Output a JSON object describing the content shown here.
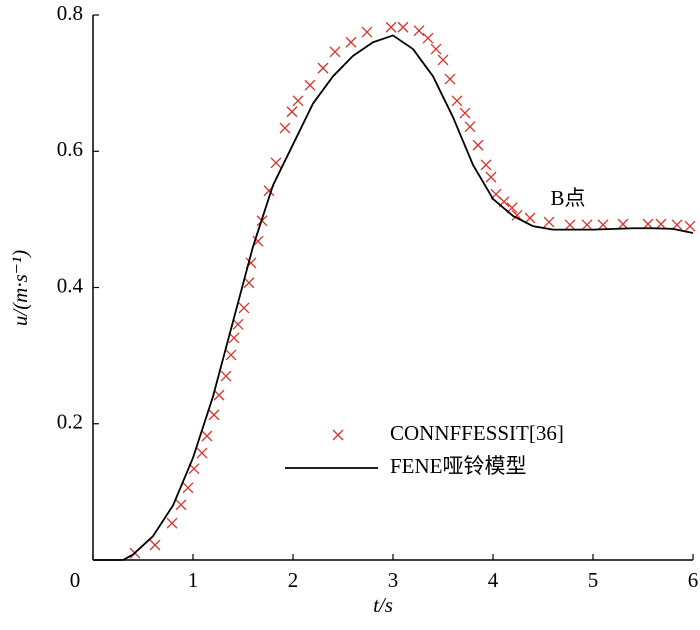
{
  "chart_data": {
    "type": "line",
    "x_label": "t/s",
    "y_label": "u/(m·s⁻¹)",
    "annotation": "B点",
    "xlim": [
      0,
      6
    ],
    "ylim": [
      0,
      0.8
    ],
    "xticks": [
      0,
      1,
      2,
      3,
      4,
      5,
      6
    ],
    "yticks": [
      0.2,
      0.4,
      0.6,
      0.8
    ],
    "series": [
      {
        "name": "CONNFFESSIT[36]",
        "type": "scatter",
        "color": "#d8322a",
        "x": [
          0.42,
          0.62,
          0.79,
          0.88,
          0.95,
          1.01,
          1.09,
          1.14,
          1.21,
          1.26,
          1.33,
          1.38,
          1.41,
          1.45,
          1.51,
          1.56,
          1.58,
          1.65,
          1.69,
          1.76,
          1.83,
          1.92,
          1.99,
          2.05,
          2.17,
          2.3,
          2.42,
          2.58,
          2.74,
          2.98,
          3.1,
          3.26,
          3.35,
          3.43,
          3.5,
          3.57,
          3.64,
          3.72,
          3.77,
          3.85,
          3.93,
          3.98,
          4.03,
          4.11,
          4.19,
          4.24,
          4.37,
          4.56,
          4.77,
          4.94,
          5.1,
          5.3,
          5.55,
          5.68,
          5.84,
          5.97
        ],
        "values": [
          0.01,
          0.022,
          0.054,
          0.081,
          0.106,
          0.134,
          0.157,
          0.182,
          0.213,
          0.242,
          0.27,
          0.301,
          0.326,
          0.346,
          0.37,
          0.407,
          0.436,
          0.468,
          0.498,
          0.542,
          0.583,
          0.634,
          0.658,
          0.674,
          0.697,
          0.722,
          0.746,
          0.76,
          0.775,
          0.782,
          0.782,
          0.777,
          0.766,
          0.75,
          0.734,
          0.706,
          0.674,
          0.656,
          0.636,
          0.609,
          0.58,
          0.562,
          0.537,
          0.526,
          0.517,
          0.506,
          0.502,
          0.496,
          0.492,
          0.492,
          0.492,
          0.493,
          0.493,
          0.493,
          0.492,
          0.49
        ]
      },
      {
        "name": "FENE哑铃模型",
        "type": "line",
        "color": "#000000",
        "x": [
          0,
          0.3,
          0.4,
          0.6,
          0.8,
          1.0,
          1.2,
          1.4,
          1.6,
          1.8,
          2.0,
          2.2,
          2.4,
          2.6,
          2.8,
          3.0,
          3.2,
          3.4,
          3.6,
          3.8,
          4.0,
          4.2,
          4.4,
          4.6,
          4.8,
          5.0,
          5.4,
          5.6,
          5.8,
          6.0
        ],
        "values": [
          0,
          0,
          0.008,
          0.035,
          0.08,
          0.15,
          0.24,
          0.35,
          0.46,
          0.55,
          0.61,
          0.67,
          0.71,
          0.74,
          0.76,
          0.77,
          0.75,
          0.71,
          0.65,
          0.58,
          0.53,
          0.505,
          0.49,
          0.485,
          0.485,
          0.485,
          0.487,
          0.487,
          0.486,
          0.48
        ]
      }
    ]
  }
}
